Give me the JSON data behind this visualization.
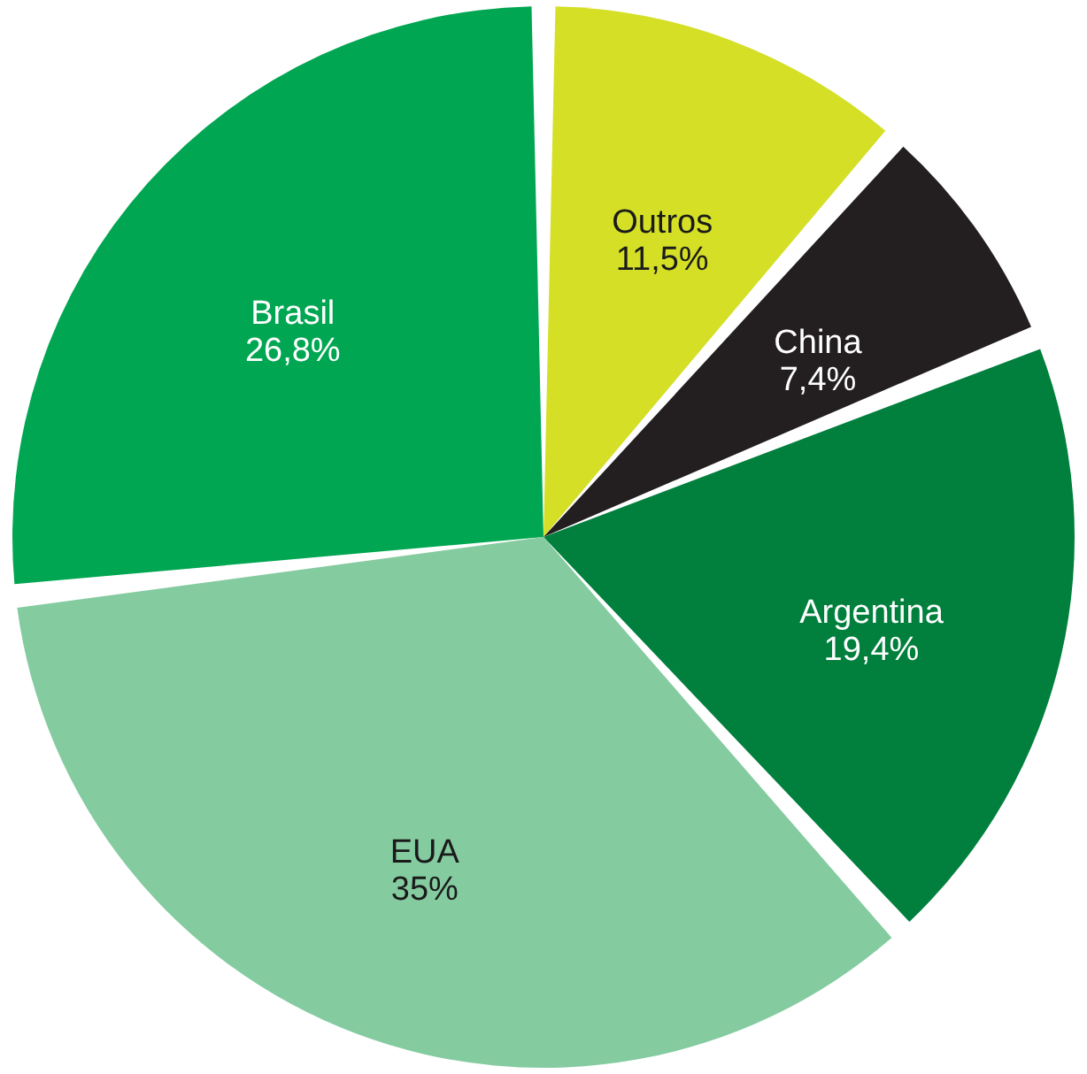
{
  "chart_data": {
    "type": "pie",
    "categories": [
      "Outros",
      "China",
      "Argentina",
      "EUA",
      "Brasil"
    ],
    "values": [
      11.5,
      7.4,
      19.4,
      35,
      26.8
    ],
    "colors": [
      "#d4df26",
      "#231f20",
      "#007f3d",
      "#84cba0",
      "#00a651"
    ],
    "value_labels": [
      "11,5%",
      "7,4%",
      "19,4%",
      "35%",
      "26,8%"
    ],
    "legend": false
  }
}
